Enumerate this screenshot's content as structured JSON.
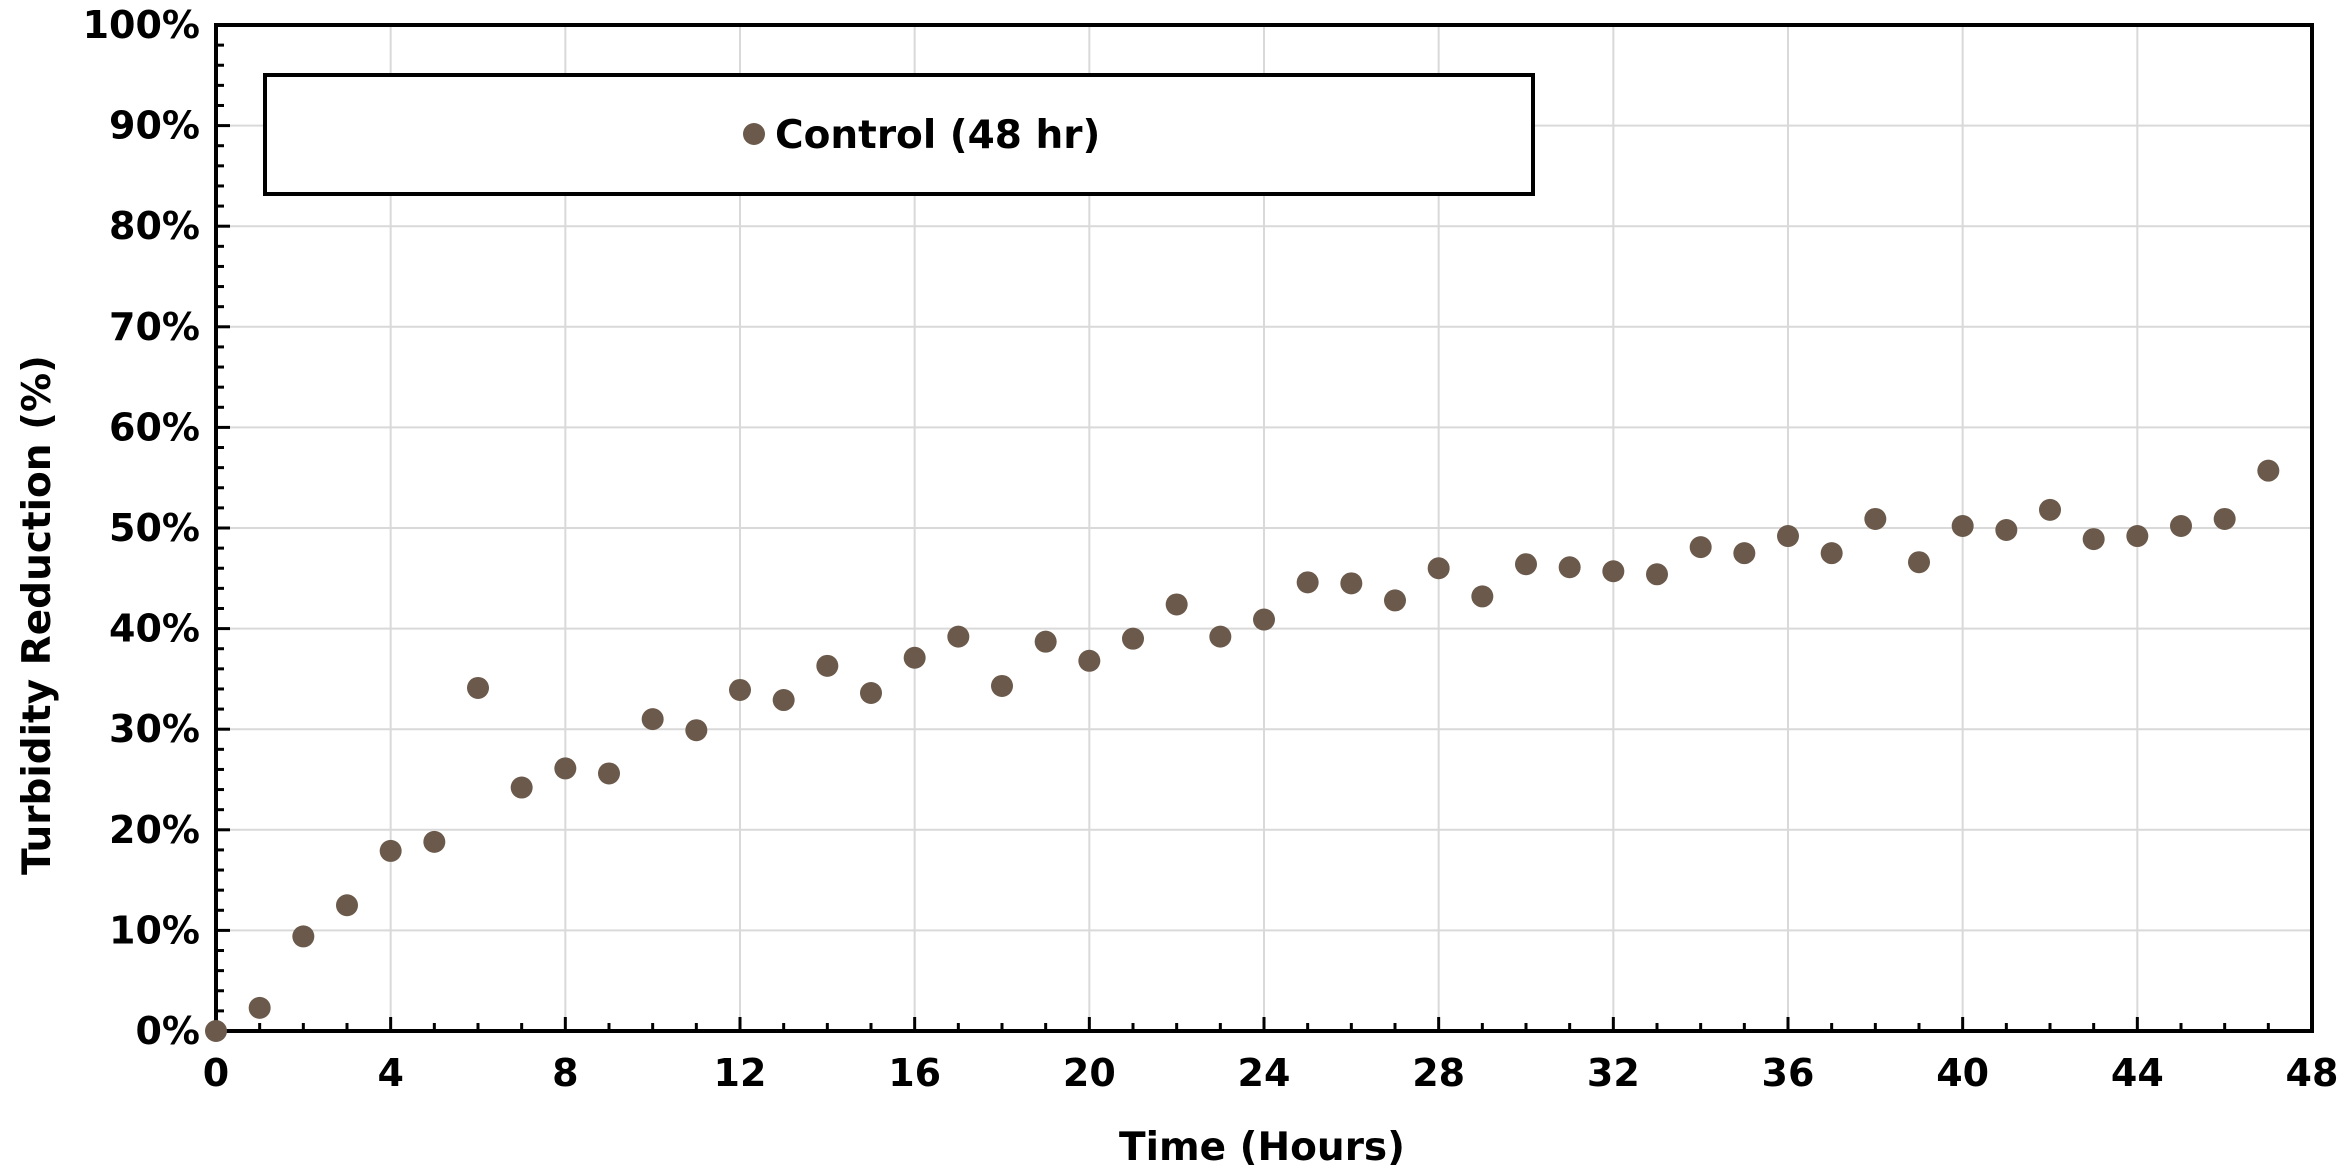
{
  "chart_data": {
    "type": "scatter",
    "xlabel": "Time (Hours)",
    "ylabel": "Turbidity Reduction (%)",
    "xlim": [
      0,
      48
    ],
    "ylim": [
      0,
      100
    ],
    "x_ticks": [
      0,
      4,
      8,
      12,
      16,
      20,
      24,
      28,
      32,
      36,
      40,
      44,
      48
    ],
    "y_ticks": [
      0,
      10,
      20,
      30,
      40,
      50,
      60,
      70,
      80,
      90,
      100
    ],
    "y_tick_labels": [
      "0%",
      "10%",
      "20%",
      "30%",
      "40%",
      "50%",
      "60%",
      "70%",
      "80%",
      "90%",
      "100%"
    ],
    "x_tick_labels": [
      "0",
      "4",
      "8",
      "12",
      "16",
      "20",
      "24",
      "28",
      "32",
      "36",
      "40",
      "44",
      "48"
    ],
    "grid": true,
    "legend": {
      "position": "top-left",
      "entries": [
        "Control (48 hr)"
      ]
    },
    "series": [
      {
        "name": "Control (48 hr)",
        "color": "#6b5a4b",
        "x": [
          0,
          1,
          2,
          3,
          4,
          5,
          6,
          7,
          8,
          9,
          10,
          11,
          12,
          13,
          14,
          15,
          16,
          17,
          18,
          19,
          20,
          21,
          22,
          23,
          24,
          25,
          26,
          27,
          28,
          29,
          30,
          31,
          32,
          33,
          34,
          35,
          36,
          37,
          38,
          39,
          40,
          41,
          42,
          43,
          44,
          45,
          46,
          47
        ],
        "y": [
          0,
          2.3,
          9.4,
          12.5,
          17.9,
          18.8,
          34.1,
          24.2,
          26.1,
          25.6,
          31.0,
          29.9,
          33.9,
          32.9,
          36.3,
          33.6,
          37.1,
          39.2,
          34.3,
          38.7,
          36.8,
          39.0,
          42.4,
          39.2,
          40.9,
          44.6,
          44.5,
          42.8,
          46.0,
          43.2,
          46.4,
          46.1,
          45.7,
          45.4,
          48.1,
          47.5,
          49.2,
          47.5,
          50.9,
          46.6,
          50.2,
          49.8,
          51.8,
          48.9,
          49.2,
          50.2,
          50.9,
          55.7
        ]
      }
    ]
  }
}
